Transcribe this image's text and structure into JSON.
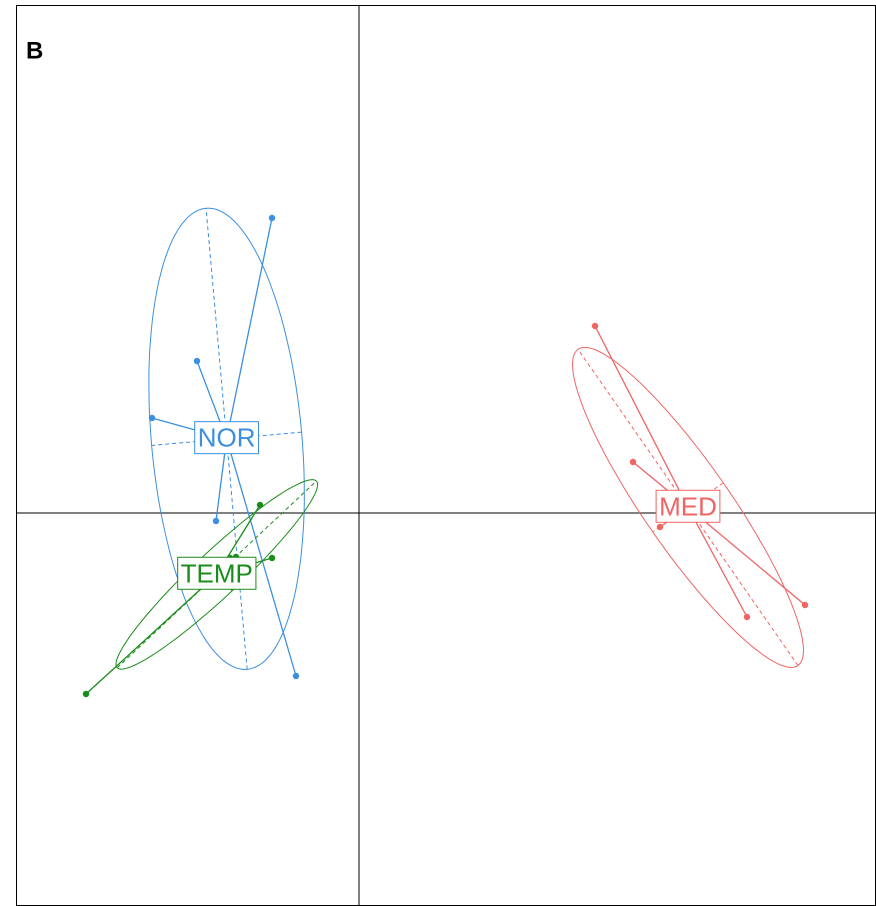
{
  "chart_data": {
    "type": "scatter",
    "title": "B",
    "xlim": [
      -3.43,
      5.17
    ],
    "ylim": [
      -3.93,
      5.08
    ],
    "series": [
      {
        "name": "NOR",
        "color": "#3b8fe0",
        "x": [
          -0.87,
          -1.62,
          -2.07,
          -1.43,
          -0.63
        ],
        "y": [
          2.95,
          1.52,
          0.95,
          -0.08,
          -1.63
        ]
      },
      {
        "name": "TEMP",
        "color": "#1a8c1a",
        "x": [
          -2.73,
          -0.99,
          -1.23,
          -0.87,
          -1.29
        ],
        "y": [
          -1.81,
          0.08,
          -0.44,
          -0.45,
          -0.45
        ]
      },
      {
        "name": "MED",
        "color": "#f06464",
        "x": [
          2.36,
          2.74,
          3.01,
          3.88,
          4.46
        ],
        "y": [
          1.87,
          0.51,
          -0.14,
          -1.04,
          -0.92
        ]
      }
    ]
  }
}
